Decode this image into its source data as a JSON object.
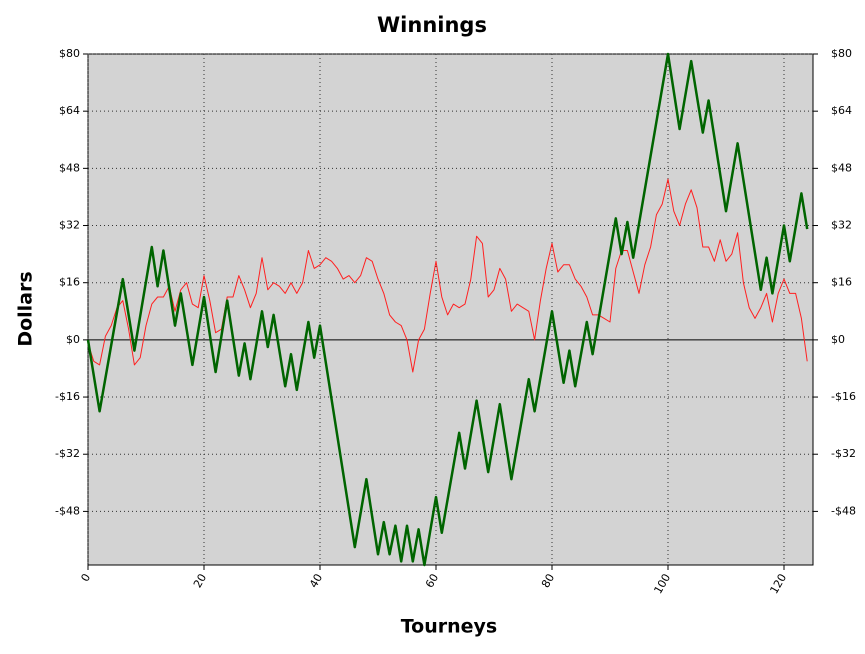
{
  "chart_data": {
    "type": "line",
    "title": "Winnings",
    "x_label": "Tourneys",
    "y_label": "Dollars",
    "xlim": [
      0,
      125
    ],
    "xticks": [
      0,
      20,
      40,
      60,
      80,
      100,
      120
    ],
    "ylim": [
      -63,
      80
    ],
    "yticks": [
      {
        "value": -48,
        "label": "-$48"
      },
      {
        "value": -32,
        "label": "-$32"
      },
      {
        "value": -16,
        "label": "-$16"
      },
      {
        "value": 0,
        "label": "$0"
      },
      {
        "value": 16,
        "label": "$16"
      },
      {
        "value": 32,
        "label": "$32"
      },
      {
        "value": 48,
        "label": "$48"
      },
      {
        "value": 64,
        "label": "$64"
      },
      {
        "value": 80,
        "label": "$80"
      }
    ],
    "grid": true,
    "background": "#d3d3d3",
    "series": [
      {
        "color": "#ff2020",
        "width": 1,
        "x": [
          0,
          1,
          2,
          3,
          4,
          5,
          6,
          7,
          8,
          9,
          10,
          11,
          12,
          13,
          14,
          15,
          16,
          17,
          18,
          19,
          20,
          21,
          22,
          23,
          24,
          25,
          26,
          27,
          28,
          29,
          30,
          31,
          32,
          33,
          34,
          35,
          36,
          37,
          38,
          39,
          40,
          41,
          42,
          43,
          44,
          45,
          46,
          47,
          48,
          49,
          50,
          51,
          52,
          53,
          54,
          55,
          56,
          57,
          58,
          59,
          60,
          61,
          62,
          63,
          64,
          65,
          66,
          67,
          68,
          69,
          70,
          71,
          72,
          73,
          74,
          75,
          76,
          77,
          78,
          79,
          80,
          81,
          82,
          83,
          84,
          85,
          86,
          87,
          88,
          89,
          90,
          91,
          92,
          93,
          94,
          95,
          96,
          97,
          98,
          99,
          100,
          101,
          102,
          103,
          104,
          105,
          106,
          107,
          108,
          109,
          110,
          111,
          112,
          113,
          114,
          115,
          116,
          117,
          118,
          119,
          120,
          121,
          122,
          123,
          124
        ],
        "values": [
          -1,
          -6,
          -7,
          1,
          4,
          9,
          11,
          3,
          -7,
          -5,
          4,
          10,
          12,
          12,
          15,
          8,
          14,
          16,
          10,
          9,
          18,
          11,
          2,
          3,
          12,
          12,
          18,
          14,
          9,
          13,
          23,
          14,
          16,
          15,
          13,
          16,
          13,
          16,
          25,
          20,
          21,
          23,
          22,
          20,
          17,
          18,
          16,
          18,
          23,
          22,
          17,
          13,
          7,
          5,
          4,
          0,
          -9,
          0,
          3,
          13,
          22,
          12,
          7,
          10,
          9,
          10,
          17,
          29,
          27,
          12,
          14,
          20,
          17,
          8,
          10,
          9,
          8,
          0,
          11,
          20,
          27,
          19,
          21,
          21,
          17,
          15,
          12,
          7,
          7,
          6,
          5,
          20,
          25,
          25,
          19,
          13,
          21,
          26,
          35,
          38,
          45,
          36,
          32,
          38,
          42,
          37,
          26,
          26,
          22,
          28,
          22,
          24,
          30,
          16,
          9,
          6,
          9,
          13,
          5,
          13,
          17,
          13,
          13,
          6,
          -6
        ]
      },
      {
        "color": "#006400",
        "width": 2.5,
        "x": [
          0,
          2,
          6,
          8,
          11,
          12,
          13,
          15,
          16,
          18,
          20,
          22,
          24,
          26,
          27,
          28,
          30,
          31,
          32,
          34,
          35,
          36,
          38,
          39,
          40,
          46,
          48,
          50,
          51,
          52,
          53,
          54,
          55,
          56,
          57,
          58,
          60,
          61,
          64,
          65,
          67,
          69,
          71,
          73,
          76,
          77,
          80,
          82,
          83,
          84,
          86,
          87,
          91,
          92,
          93,
          94,
          100,
          102,
          104,
          106,
          107,
          110,
          112,
          116,
          117,
          118,
          120,
          121,
          123,
          124
        ],
        "values": [
          0,
          -20,
          17,
          -3,
          26,
          15,
          25,
          4,
          13,
          -7,
          12,
          -9,
          11,
          -10,
          -1,
          -11,
          8,
          -2,
          7,
          -13,
          -4,
          -14,
          5,
          -5,
          4,
          -58,
          -39,
          -60,
          -51,
          -60,
          -52,
          -62,
          -52,
          -62,
          -53,
          -63,
          -44,
          -54,
          -26,
          -36,
          -17,
          -37,
          -18,
          -39,
          -11,
          -20,
          8,
          -12,
          -3,
          -13,
          5,
          -4,
          34,
          24,
          33,
          23,
          80,
          59,
          78,
          58,
          67,
          36,
          55,
          14,
          23,
          13,
          32,
          22,
          41,
          31
        ]
      }
    ]
  }
}
